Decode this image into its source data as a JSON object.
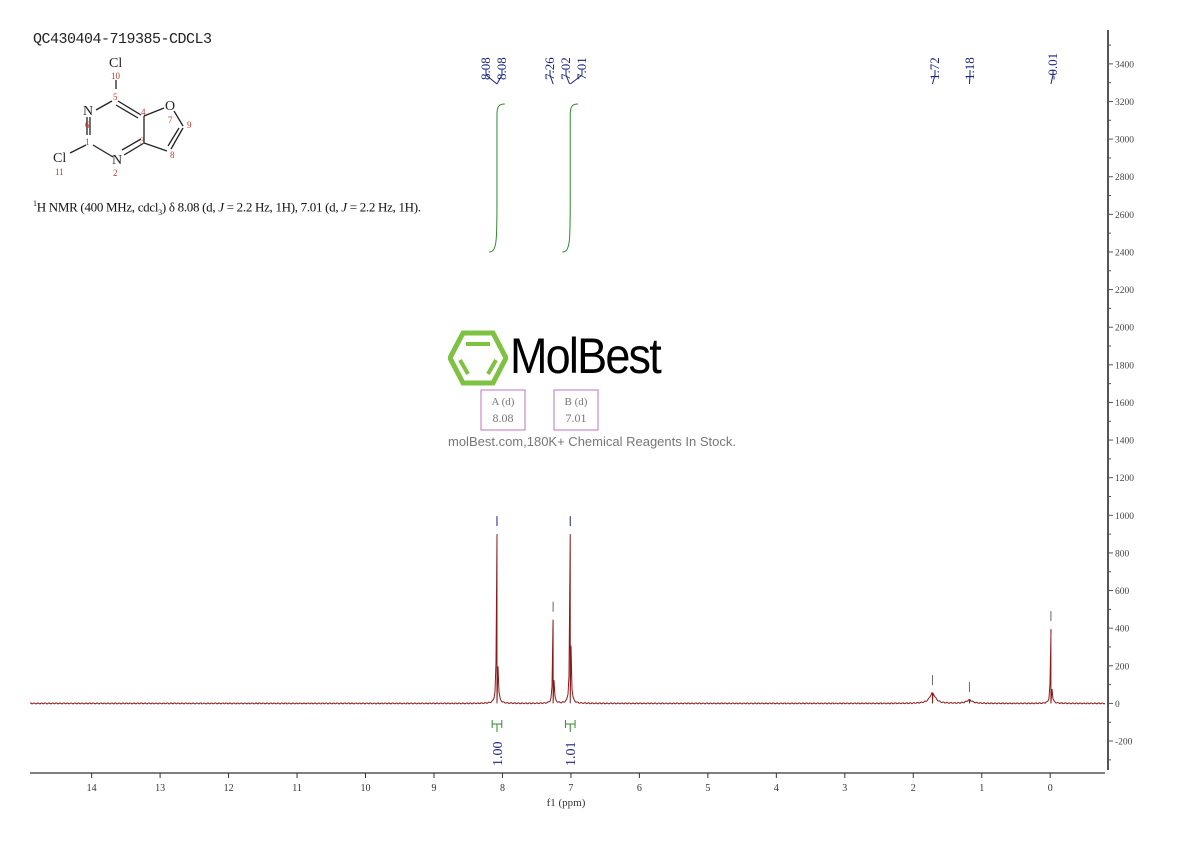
{
  "title": "QC430404-719385-CDCL3",
  "description": "H NMR (400 MHz, cdcl3) δ 8.08 (d, J = 2.2 Hz, 1H), 7.01 (d, J = 2.2 Hz, 1H).",
  "description_parts": {
    "sup": "1",
    "a": "H NMR (400 MHz, cdcl",
    "sub": "3",
    "b": ") δ 8.08 (d, ",
    "j1": "J",
    "c": " = 2.2 Hz, 1H), 7.01 (d, ",
    "j2": "J",
    "d": " = 2.2 Hz, 1H)."
  },
  "structure": {
    "atoms": [
      "Cl",
      "N",
      "N",
      "O"
    ],
    "numbers": [
      "1",
      "2",
      "3",
      "4",
      "5",
      "6",
      "7",
      "8",
      "9",
      "10",
      "11"
    ]
  },
  "watermark": {
    "name": "MolBest",
    "tagline": "molBest.com,180K+ Chemical Reagents In Stock.",
    "color": "#7dc242"
  },
  "multiplets": [
    {
      "label": "A (d)",
      "shift": "8.08"
    },
    {
      "label": "B (d)",
      "shift": "7.01"
    }
  ],
  "chart_data": {
    "type": "line",
    "xlabel": "f1 (ppm)",
    "ylabel": "",
    "xlim": [
      14.9,
      -0.8
    ],
    "ylim": [
      -370,
      3580
    ],
    "x_ticks": [
      14,
      13,
      12,
      11,
      10,
      9,
      8,
      7,
      6,
      5,
      4,
      3,
      2,
      1,
      0
    ],
    "y_ticks": [
      -200,
      0,
      200,
      400,
      600,
      800,
      1000,
      1200,
      1400,
      1600,
      1800,
      2000,
      2200,
      2400,
      2600,
      2800,
      3000,
      3200,
      3400
    ],
    "peaks": [
      {
        "ppm": 8.08,
        "height": 900
      },
      {
        "ppm": 7.26,
        "height": 445
      },
      {
        "ppm": 7.01,
        "height": 900
      },
      {
        "ppm": 1.72,
        "height": 55
      },
      {
        "ppm": 1.18,
        "height": 18
      },
      {
        "ppm": -0.01,
        "height": 395
      }
    ],
    "peak_labels": [
      {
        "text": "8.08",
        "ppm": 8.08
      },
      {
        "text": "8.08",
        "ppm": 8.08
      },
      {
        "text": "7.26",
        "ppm": 7.26
      },
      {
        "text": "7.02",
        "ppm": 7.02
      },
      {
        "text": "7.01",
        "ppm": 7.01
      },
      {
        "text": "1.72",
        "ppm": 1.72
      },
      {
        "text": "1.18",
        "ppm": 1.18
      },
      {
        "text": "-0.01",
        "ppm": -0.01
      }
    ],
    "integrals": [
      {
        "from": 8.15,
        "to": 8.01,
        "value": "1.00"
      },
      {
        "from": 7.08,
        "to": 6.94,
        "value": "1.01"
      }
    ],
    "colors": {
      "spectrum": "#8b1a1a",
      "labels": "#1a237e",
      "integral": "#2e8b2e",
      "multiplet_box": "#c070c0"
    },
    "grid": false
  }
}
